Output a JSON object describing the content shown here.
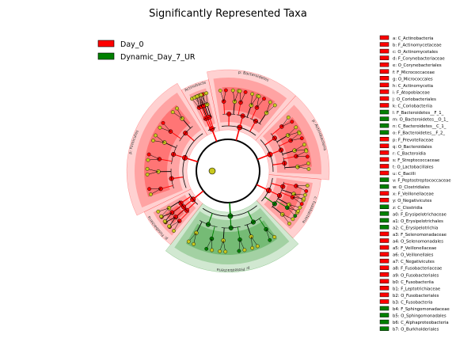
{
  "chart_data": {
    "type": "cladogram",
    "title": "Significantly Represented Taxa",
    "colors": {
      "Day_0": "#ff0000",
      "Dynamic_Day_7_UR": "#008000",
      "neutral": "#c8c81e"
    },
    "groups": [
      {
        "name": "Day_0",
        "color": "#ff0000"
      },
      {
        "name": "Dynamic_Day_7_UR",
        "color": "#008000"
      }
    ],
    "clades": [
      {
        "label": "p: Bacteroidetes",
        "group": "Day_0"
      },
      {
        "label": "c: Actinobacteria",
        "group": "Day_0"
      },
      {
        "label": "p: Actinobacteria",
        "group": "Day_0"
      },
      {
        "label": "c: Fusobacteria",
        "group": "Day_0"
      },
      {
        "label": "p: Proteobacteria",
        "group": "Dynamic_Day_7_UR"
      },
      {
        "label": "p: Fusobacteria",
        "group": "Day_0"
      },
      {
        "label": "p: Firmicutes",
        "group": "Day_0"
      }
    ],
    "taxa": [
      {
        "key": "a",
        "name": "C_Actinobacteria",
        "group": "Day_0"
      },
      {
        "key": "b",
        "name": "F_Actinomycetaceae",
        "group": "Day_0"
      },
      {
        "key": "c",
        "name": "O_Actinomycetales",
        "group": "Day_0"
      },
      {
        "key": "d",
        "name": "F_Corynebacteriaceae",
        "group": "Day_0"
      },
      {
        "key": "e",
        "name": "O_Corynebacteriales",
        "group": "Day_0"
      },
      {
        "key": "f",
        "name": "F_Micrococcaceae",
        "group": "Day_0"
      },
      {
        "key": "g",
        "name": "O_Micrococcales",
        "group": "Day_0"
      },
      {
        "key": "h",
        "name": "C_Actinomycetia",
        "group": "Day_0"
      },
      {
        "key": "i",
        "name": "F_Atopobiaceae",
        "group": "Day_0"
      },
      {
        "key": "j",
        "name": "O_Coriobacteriales",
        "group": "Day_0"
      },
      {
        "key": "k",
        "name": "C_Coriobacteriia",
        "group": "Day_0"
      },
      {
        "key": "l",
        "name": "F_Bacteroidetes__F_1_",
        "group": "Dynamic_Day_7_UR"
      },
      {
        "key": "m",
        "name": "O_Bacteroidetes__O_1_",
        "group": "Dynamic_Day_7_UR"
      },
      {
        "key": "n",
        "name": "C_Bacteroidetes__C_1_",
        "group": "Dynamic_Day_7_UR"
      },
      {
        "key": "o",
        "name": "F_Bacteroidetes__F_2_",
        "group": "Dynamic_Day_7_UR"
      },
      {
        "key": "p",
        "name": "F_Prevotellaceae",
        "group": "Day_0"
      },
      {
        "key": "q",
        "name": "O_Bacteroidales",
        "group": "Day_0"
      },
      {
        "key": "r",
        "name": "C_Bacteroidia",
        "group": "Day_0"
      },
      {
        "key": "s",
        "name": "F_Streptococcaceae",
        "group": "Day_0"
      },
      {
        "key": "t",
        "name": "O_Lactobacillales",
        "group": "Day_0"
      },
      {
        "key": "u",
        "name": "C_Bacilli",
        "group": "Day_0"
      },
      {
        "key": "v",
        "name": "F_Peptostreptococcaceae",
        "group": "Dynamic_Day_7_UR"
      },
      {
        "key": "w",
        "name": "O_Clostridiales",
        "group": "Dynamic_Day_7_UR"
      },
      {
        "key": "x",
        "name": "F_Veillonellaceae",
        "group": "Day_0"
      },
      {
        "key": "y",
        "name": "O_Negativicutes",
        "group": "Day_0"
      },
      {
        "key": "z",
        "name": "C_Clostridia",
        "group": "Dynamic_Day_7_UR"
      },
      {
        "key": "a0",
        "name": "F_Erysipelotrichaceae",
        "group": "Dynamic_Day_7_UR"
      },
      {
        "key": "a1",
        "name": "O_Erysipelotrichales",
        "group": "Dynamic_Day_7_UR"
      },
      {
        "key": "a2",
        "name": "C_Erysipelotrichia",
        "group": "Dynamic_Day_7_UR"
      },
      {
        "key": "a3",
        "name": "F_Selenomonadaceae",
        "group": "Day_0"
      },
      {
        "key": "a4",
        "name": "O_Selenomonadales",
        "group": "Day_0"
      },
      {
        "key": "a5",
        "name": "F_Veillonellaceae",
        "group": "Day_0"
      },
      {
        "key": "a6",
        "name": "O_Veillonellales",
        "group": "Day_0"
      },
      {
        "key": "a7",
        "name": "C_Negativicutes",
        "group": "Day_0"
      },
      {
        "key": "a8",
        "name": "F_Fusobacteriaceae",
        "group": "Day_0"
      },
      {
        "key": "a9",
        "name": "O_Fusobacteriales",
        "group": "Day_0"
      },
      {
        "key": "b0",
        "name": "C_Fusobacteriia",
        "group": "Day_0"
      },
      {
        "key": "b1",
        "name": "F_Leptotrichiaceae",
        "group": "Day_0"
      },
      {
        "key": "b2",
        "name": "O_Fusobacteriales",
        "group": "Day_0"
      },
      {
        "key": "b3",
        "name": "C_Fusobacteria",
        "group": "Day_0"
      },
      {
        "key": "b4",
        "name": "F_Sphingomonadaceae",
        "group": "Dynamic_Day_7_UR"
      },
      {
        "key": "b5",
        "name": "O_Sphingomonadales",
        "group": "Dynamic_Day_7_UR"
      },
      {
        "key": "b6",
        "name": "C_Alphaproteobacteria",
        "group": "Dynamic_Day_7_UR"
      },
      {
        "key": "b7",
        "name": "O_Burkholderiales",
        "group": "Dynamic_Day_7_UR"
      }
    ]
  }
}
